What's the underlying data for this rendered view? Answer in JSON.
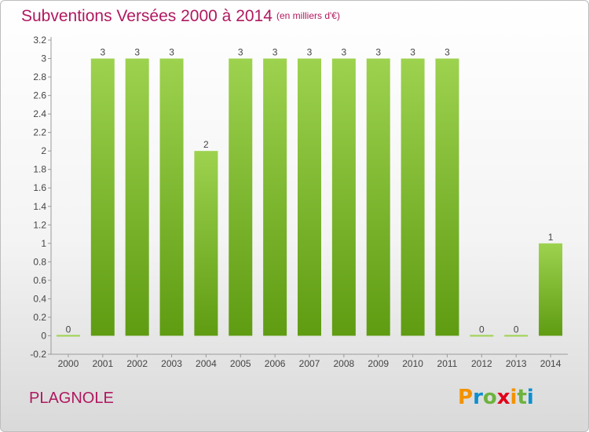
{
  "chart_data": {
    "type": "bar",
    "title": "Subventions Versées 2000 à 2014",
    "unit_note": "(en milliers d'€)",
    "categories": [
      "2000",
      "2001",
      "2002",
      "2003",
      "2004",
      "2005",
      "2006",
      "2007",
      "2008",
      "2009",
      "2010",
      "2011",
      "2012",
      "2013",
      "2014"
    ],
    "values": [
      0,
      3,
      3,
      3,
      2,
      3,
      3,
      3,
      3,
      3,
      3,
      3,
      0,
      0,
      1
    ],
    "data_labels": [
      "0",
      "3",
      "3",
      "3",
      "2",
      "3",
      "3",
      "3",
      "3",
      "3",
      "3",
      "3",
      "0",
      "0",
      "1"
    ],
    "ylim": [
      -0.2,
      3.2
    ],
    "yticks": [
      "-0.2",
      "0",
      "0.2",
      "0.4",
      "0.6",
      "0.8",
      "1",
      "1.2",
      "1.4",
      "1.6",
      "1.8",
      "2",
      "2.2",
      "2.4",
      "2.6",
      "2.8",
      "3",
      "3.2"
    ],
    "ytick_values": [
      -0.2,
      0,
      0.2,
      0.4,
      0.6,
      0.8,
      1,
      1.2,
      1.4,
      1.6,
      1.8,
      2,
      2.2,
      2.4,
      2.6,
      2.8,
      3,
      3.2
    ],
    "grid": false,
    "xlabel": "",
    "ylabel": "",
    "bar_color_top": "#9dd24f",
    "bar_color_bottom": "#5f9c12",
    "title_color": "#b0185f"
  },
  "location_label": "PLAGNOLE",
  "logo": {
    "letters": [
      "P",
      "r",
      "o",
      "x",
      "i",
      "t",
      "i"
    ],
    "colors": [
      "#f39200",
      "#0d8fcf",
      "#6cb33e",
      "#e2001a",
      "#f39200",
      "#6cb33e",
      "#0d8fcf"
    ]
  }
}
